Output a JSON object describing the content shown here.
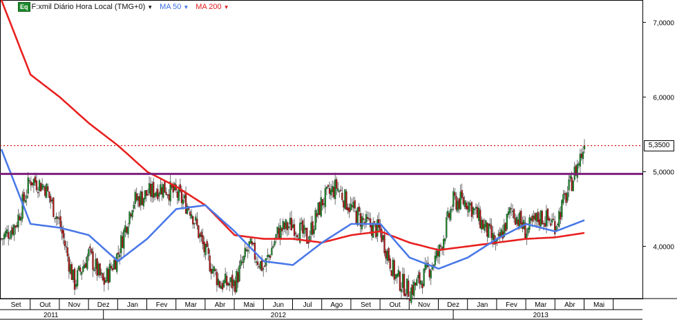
{
  "legend": {
    "badge": "Eq",
    "symbol": "F:xmil Diário Hora Local (TMG+0)",
    "ma50": "MA 50",
    "ma200": "MA 200"
  },
  "last_price": "5,3500",
  "colors": {
    "up": "#1a8a2a",
    "down": "#b01818",
    "ma50": "#4a78e8",
    "ma200": "#e82020",
    "hline": "#7a1e7a",
    "dotted": "#d01010"
  },
  "chart_data": {
    "type": "candlestick",
    "ylim": [
      3.3,
      7.3
    ],
    "y_ticks": [
      "4,0000",
      "5,0000",
      "6,0000",
      "7,0000"
    ],
    "y_tick_values": [
      4.0,
      5.0,
      6.0,
      7.0
    ],
    "months": [
      "Set",
      "Out",
      "Nov",
      "Dez",
      "Jan",
      "Fev",
      "Mar",
      "Abr",
      "Mai",
      "Jun",
      "Jul",
      "Ago",
      "Set",
      "Out",
      "Nov",
      "Dez",
      "Jan",
      "Fev",
      "Mar",
      "Abr",
      "Mai"
    ],
    "years": [
      "2011",
      "2012",
      "2013"
    ],
    "horizontal_line": 4.97,
    "last_price_line": 5.35,
    "close_path_months": [
      0,
      0.5,
      1,
      1.5,
      2,
      2.5,
      3,
      3.5,
      4,
      4.5,
      5,
      5.5,
      6,
      6.5,
      7,
      7.5,
      8,
      8.5,
      9,
      9.5,
      10,
      10.5,
      11,
      11.5,
      12,
      12.5,
      13,
      13.5,
      14,
      14.5,
      15,
      15.5,
      16,
      16.5,
      17,
      17.5,
      18,
      18.5,
      19,
      19.5,
      20
    ],
    "close_path_values": [
      4.1,
      4.3,
      4.9,
      4.8,
      4.3,
      3.5,
      3.9,
      3.5,
      3.9,
      4.6,
      4.7,
      4.8,
      4.7,
      4.5,
      3.9,
      3.5,
      3.5,
      4.0,
      3.7,
      4.2,
      4.3,
      4.1,
      4.6,
      4.8,
      4.5,
      4.3,
      4.2,
      3.6,
      3.4,
      3.6,
      3.9,
      4.6,
      4.6,
      4.3,
      4.0,
      4.5,
      4.2,
      4.4,
      4.3,
      4.8,
      5.35
    ],
    "ma50_months": [
      0,
      1,
      2,
      3,
      4,
      5,
      6,
      7,
      8,
      9,
      10,
      11,
      12,
      13,
      14,
      15,
      16,
      17,
      18,
      19,
      20
    ],
    "ma50_values": [
      5.3,
      4.3,
      4.25,
      4.15,
      3.8,
      4.1,
      4.5,
      4.55,
      4.2,
      3.8,
      3.75,
      4.05,
      4.3,
      4.3,
      3.85,
      3.7,
      3.85,
      4.1,
      4.3,
      4.2,
      4.35
    ],
    "ma200_months": [
      0,
      1,
      2,
      3,
      4,
      5,
      6,
      7,
      8,
      9,
      10,
      11,
      12,
      13,
      14,
      15,
      16,
      17,
      18,
      19,
      20
    ],
    "ma200_values": [
      7.3,
      6.3,
      6.0,
      5.65,
      5.35,
      5.0,
      4.8,
      4.55,
      4.15,
      4.1,
      4.1,
      4.05,
      4.15,
      4.2,
      4.05,
      3.95,
      4.0,
      4.05,
      4.1,
      4.12,
      4.18
    ]
  }
}
